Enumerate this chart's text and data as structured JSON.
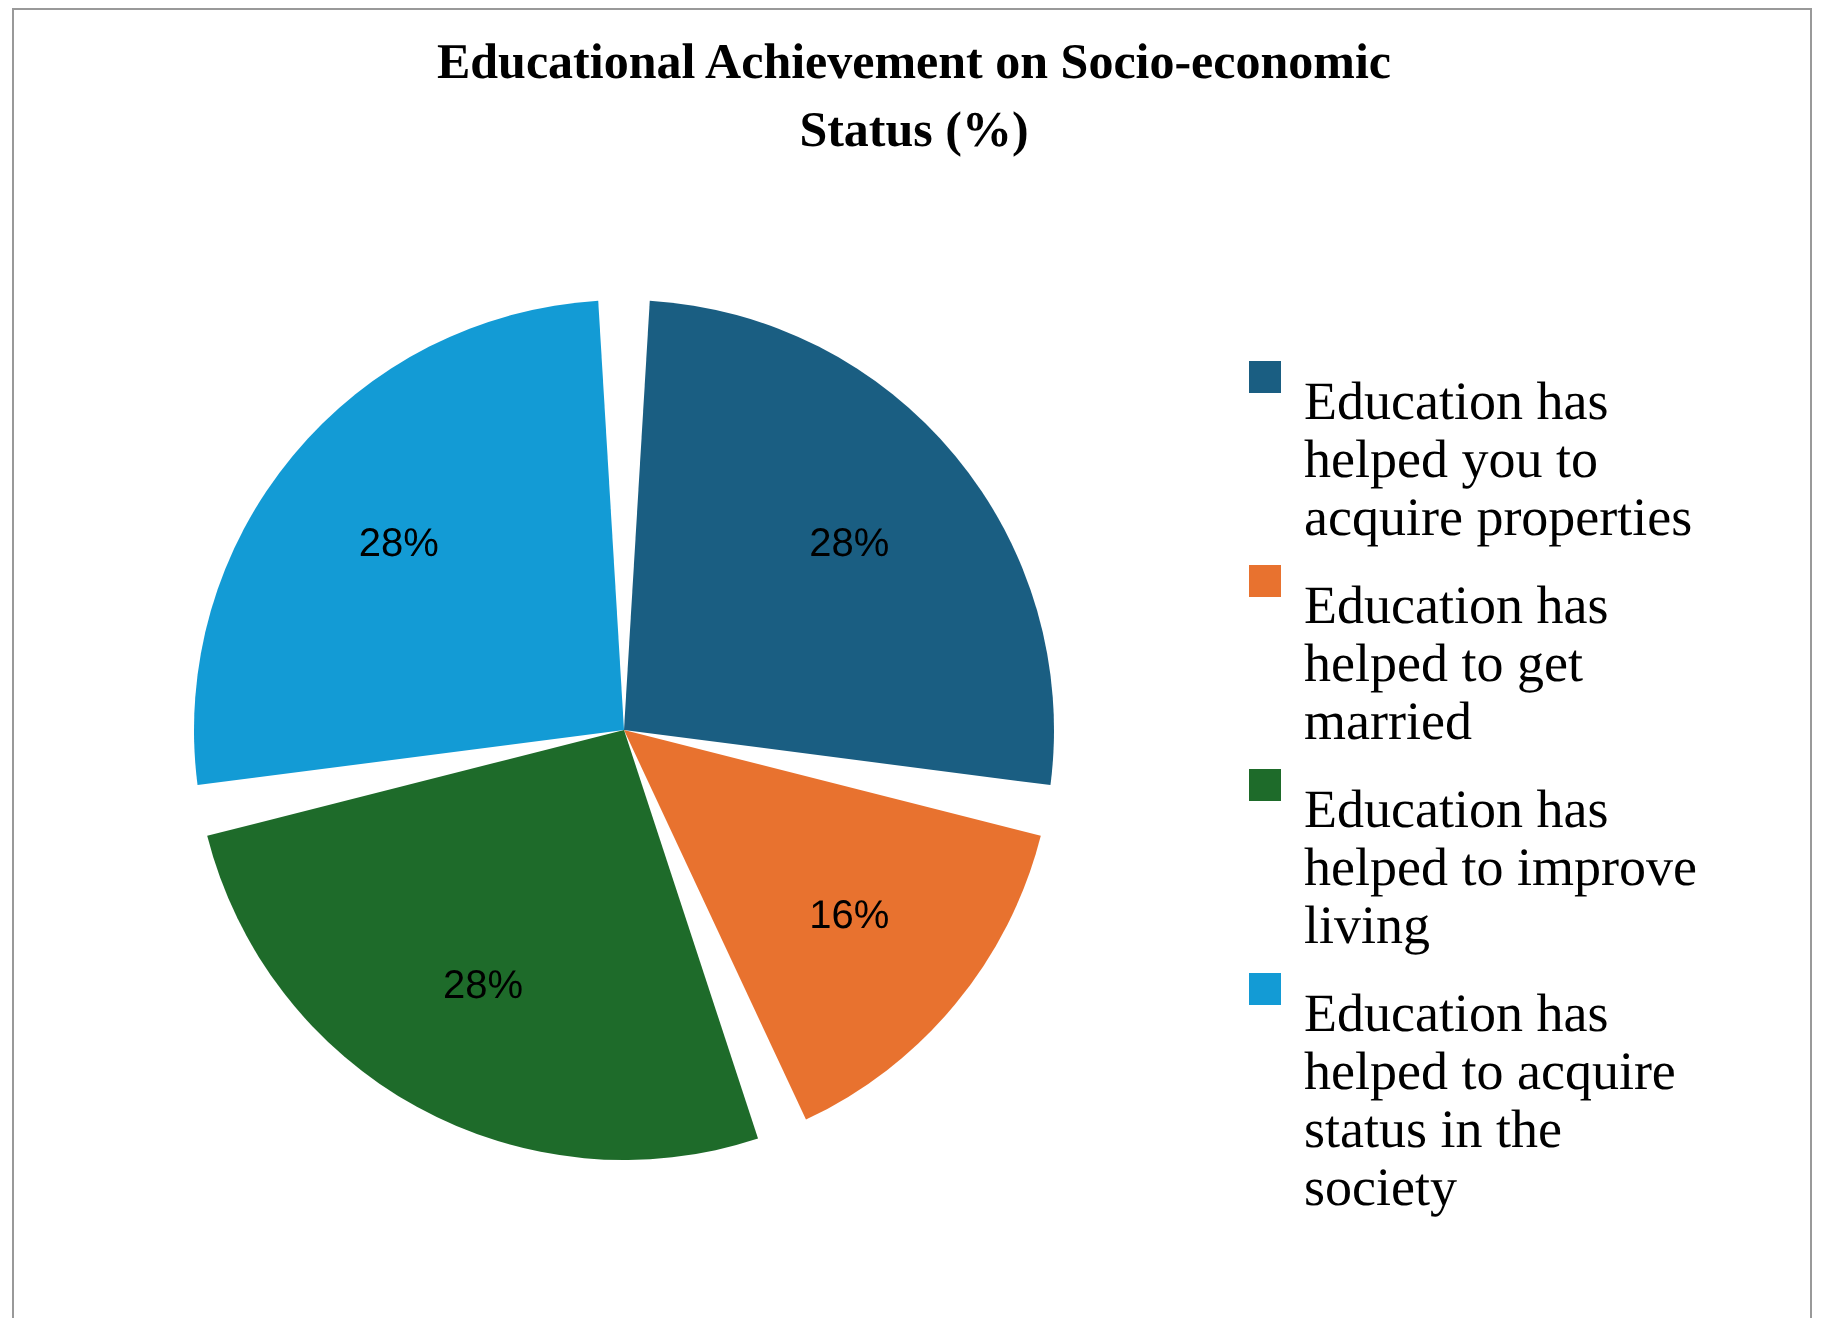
{
  "chart_data": {
    "type": "pie",
    "title": "Educational Achievement on Socio-economic Status (%)",
    "categories": [
      "Education has helped you to acquire properties",
      "Education has helped to get married",
      "Education has helped to improve living",
      "Education has helped to acquire status in the society"
    ],
    "values": [
      28,
      16,
      28,
      28
    ],
    "colors": [
      "#1a5e82",
      "#e8722f",
      "#1e6b2a",
      "#139bd5"
    ],
    "value_labels": [
      "28%",
      "16%",
      "28%",
      "28%"
    ],
    "legend": "right"
  }
}
